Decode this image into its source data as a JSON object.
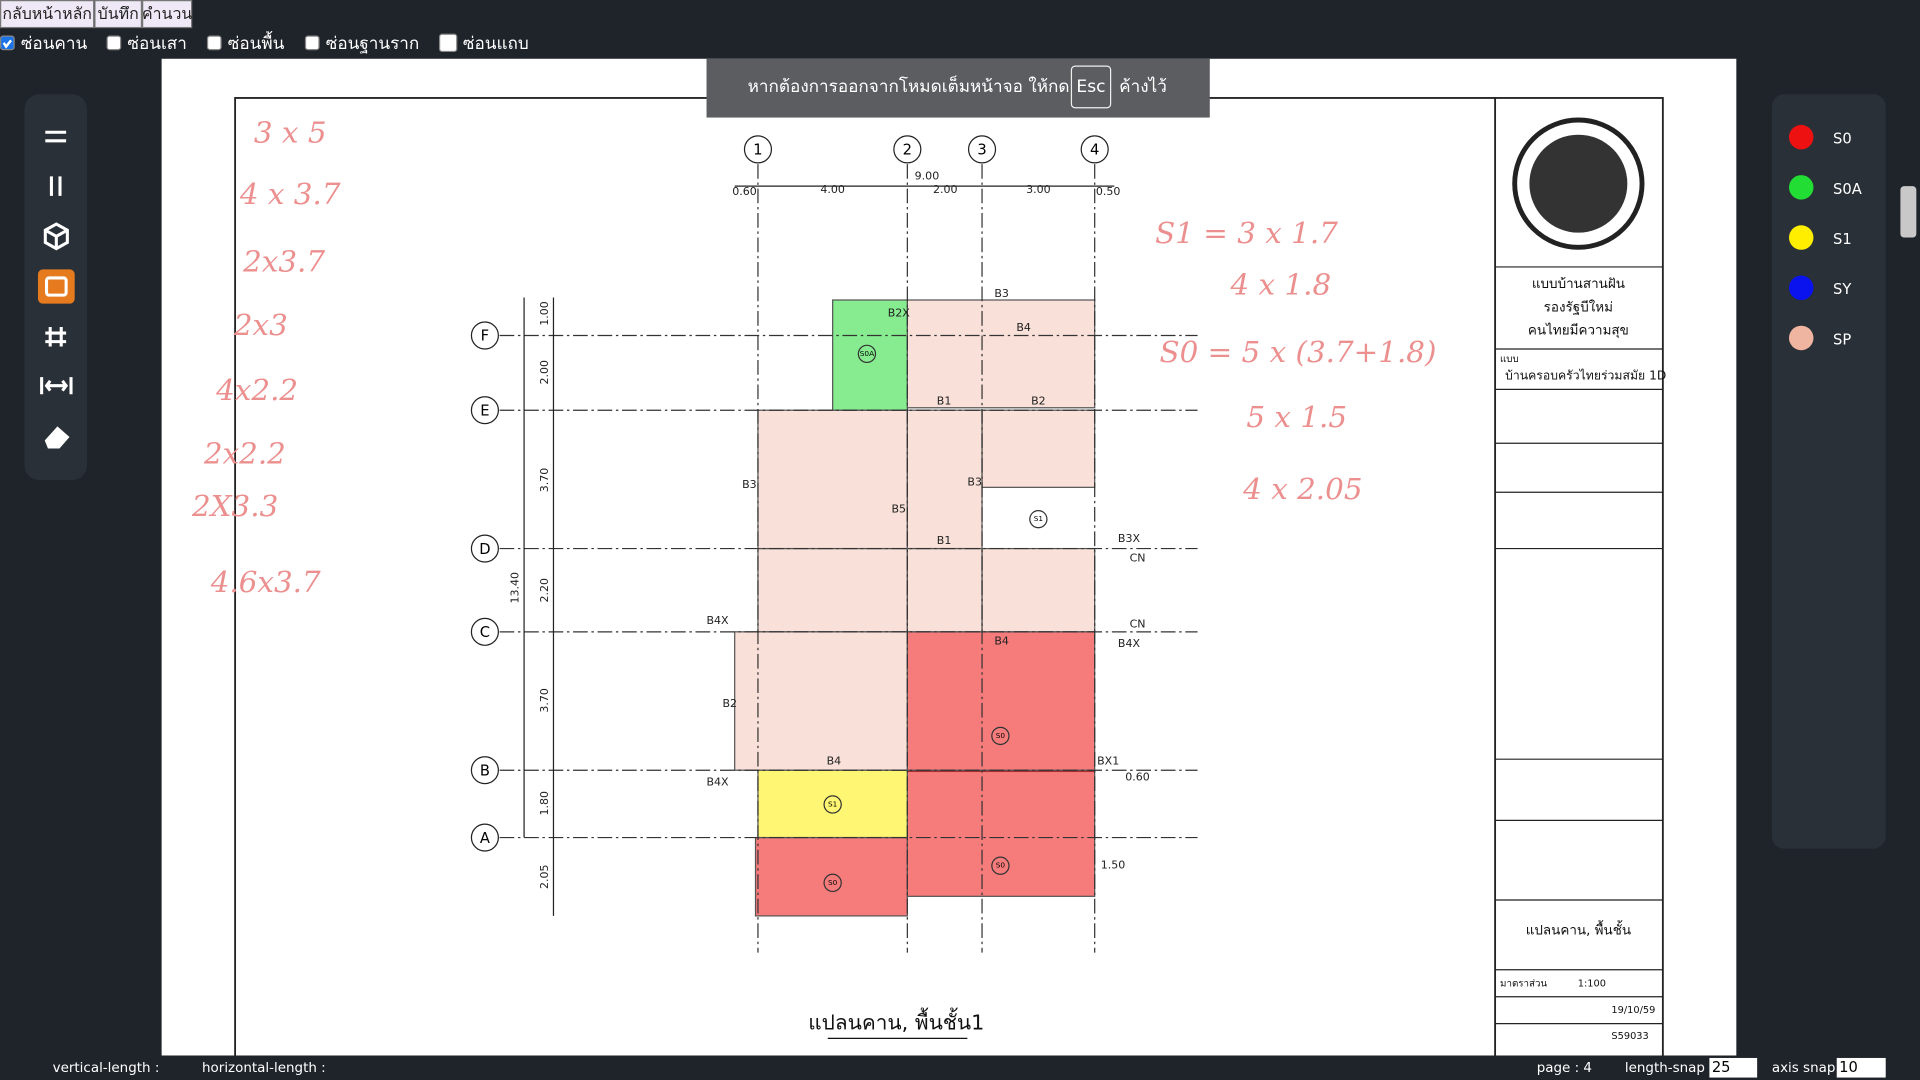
{
  "toolbar": {
    "buttons": [
      "กลับหน้าหลัก",
      "บันทึก",
      "คำนวน"
    ],
    "checkboxes": [
      {
        "label": "ซ่อนคาน",
        "checked": true
      },
      {
        "label": "ซ่อนเสา",
        "checked": false
      },
      {
        "label": "ซ่อนพื้น",
        "checked": false
      },
      {
        "label": "ซ่อนฐานราก",
        "checked": false
      },
      {
        "label": "ซ่อนแถบ",
        "checked": false
      }
    ]
  },
  "fullscreen_notice": {
    "before": "หากต้องการออกจากโหมดเต็มหน้าจอ ให้กด",
    "key": "Esc",
    "after": "ค้างไว้"
  },
  "legend": [
    {
      "label": "S0",
      "color": "#ee1111"
    },
    {
      "label": "S0A",
      "color": "#22dd33"
    },
    {
      "label": "S1",
      "color": "#ffee00"
    },
    {
      "label": "SY",
      "color": "#0a12ee"
    },
    {
      "label": "SP",
      "color": "#f0b5a0"
    }
  ],
  "status_bar": {
    "vertical_length": "vertical-length :",
    "horizontal_length": "horizontal-length :",
    "page": "page : 4",
    "length_snap_label": "length-snap :",
    "length_snap": "25",
    "axis_snap_label": "axis snap :",
    "axis_snap": "10"
  },
  "drawing": {
    "grid_columns": [
      "1",
      "2",
      "3",
      "4"
    ],
    "grid_rows": [
      "F",
      "E",
      "D",
      "C",
      "B",
      "A"
    ],
    "top_dimensions": [
      "9.00",
      "0.60",
      "4.00",
      "2.00",
      "3.00",
      "0.50"
    ],
    "side_dimensions": [
      "1.00",
      "2.00",
      "3.70",
      "2.20",
      "3.70",
      "1.80",
      "2.05",
      "13.40"
    ],
    "beam_labels": [
      "B3",
      "B4",
      "B2X",
      "B1",
      "B2",
      "B3",
      "B5",
      "B1",
      "B3",
      "B4",
      "B4X",
      "B4X",
      "B3X",
      "CN",
      "CN",
      "B4",
      "B2",
      "B4X",
      "BX1",
      "1.50",
      "0.60"
    ],
    "slab_labels": [
      "S0A",
      "S0",
      "S0",
      "S0",
      "S1",
      "S1"
    ],
    "notes_left": [
      "3 x 5",
      "4 x 3.7",
      "2x3.7",
      "2x3",
      "4x2.2",
      "2x2.2",
      "2X3.3",
      "4.6x3.7"
    ],
    "notes_right": [
      "S1 = 3 x 1.7",
      "4 x 1.8",
      "S0 = 5 x (3.7+1.8)",
      "5 x 1.5",
      "4 x 2.05"
    ],
    "title": "แปลนคาน, พื้นชั้น1",
    "title_block": [
      "แบบบ้านสานฝัน",
      "รองรัฐบีใหม่",
      "คนไทยมีความสุข",
      "แบบ",
      "บ้านครอบครัวไทยร่วมสมัย 1D",
      "แปลนคาน, พื้นชั้น",
      "มาตราส่วน",
      "1:100",
      "19/10/59",
      "S59033"
    ]
  }
}
